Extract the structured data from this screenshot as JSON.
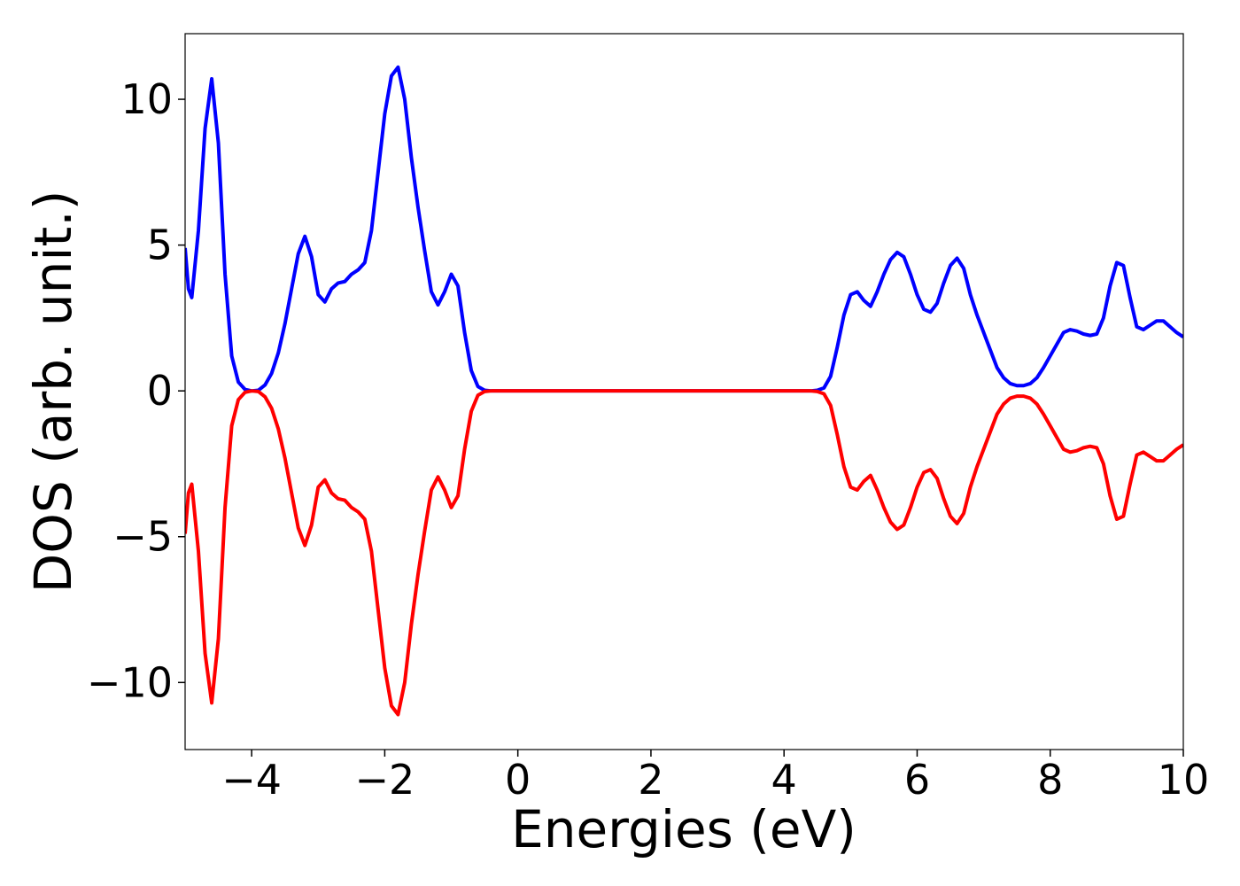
{
  "chart_data": {
    "type": "line",
    "xlabel": "Energies (eV)",
    "ylabel": "DOS (arb. unit.)",
    "x": [
      -5,
      -4.95,
      -4.9,
      -4.8,
      -4.7,
      -4.6,
      -4.5,
      -4.4,
      -4.3,
      -4.2,
      -4.1,
      -4.0,
      -3.9,
      -3.8,
      -3.7,
      -3.6,
      -3.5,
      -3.4,
      -3.3,
      -3.2,
      -3.1,
      -3.0,
      -2.9,
      -2.8,
      -2.7,
      -2.6,
      -2.5,
      -2.4,
      -2.3,
      -2.2,
      -2.1,
      -2.0,
      -1.9,
      -1.8,
      -1.7,
      -1.6,
      -1.5,
      -1.4,
      -1.3,
      -1.2,
      -1.1,
      -1.0,
      -0.9,
      -0.8,
      -0.7,
      -0.6,
      -0.5,
      -0.4,
      0,
      1,
      2,
      3,
      4,
      4.4,
      4.5,
      4.6,
      4.7,
      4.8,
      4.9,
      5.0,
      5.1,
      5.2,
      5.3,
      5.4,
      5.5,
      5.6,
      5.7,
      5.8,
      5.9,
      6.0,
      6.1,
      6.2,
      6.3,
      6.4,
      6.5,
      6.6,
      6.7,
      6.8,
      6.9,
      7.0,
      7.1,
      7.2,
      7.3,
      7.4,
      7.5,
      7.6,
      7.7,
      7.8,
      7.9,
      8.0,
      8.1,
      8.2,
      8.3,
      8.4,
      8.5,
      8.6,
      8.7,
      8.8,
      8.9,
      9.0,
      9.1,
      9.2,
      9.3,
      9.4,
      9.5,
      9.6,
      9.7,
      9.8,
      9.9,
      10.0
    ],
    "series": [
      {
        "color": "#0000ff",
        "values": [
          4.9,
          3.5,
          3.2,
          5.5,
          9.0,
          10.7,
          8.5,
          4.0,
          1.2,
          0.3,
          0.05,
          0,
          0.02,
          0.2,
          0.6,
          1.3,
          2.3,
          3.5,
          4.7,
          5.3,
          4.6,
          3.3,
          3.05,
          3.5,
          3.7,
          3.75,
          4.0,
          4.15,
          4.4,
          5.5,
          7.5,
          9.5,
          10.8,
          11.1,
          10.0,
          8.0,
          6.3,
          4.8,
          3.4,
          2.95,
          3.4,
          4.0,
          3.6,
          2.0,
          0.7,
          0.15,
          0.02,
          0,
          0,
          0,
          0,
          0,
          0,
          0,
          0.02,
          0.1,
          0.5,
          1.5,
          2.6,
          3.3,
          3.4,
          3.1,
          2.9,
          3.4,
          4.0,
          4.5,
          4.75,
          4.6,
          4.0,
          3.3,
          2.8,
          2.7,
          3.0,
          3.7,
          4.3,
          4.55,
          4.2,
          3.3,
          2.6,
          2.0,
          1.4,
          0.8,
          0.45,
          0.25,
          0.18,
          0.18,
          0.25,
          0.45,
          0.8,
          1.2,
          1.6,
          2.0,
          2.1,
          2.05,
          1.95,
          1.9,
          1.95,
          2.5,
          3.6,
          4.4,
          4.3,
          3.2,
          2.2,
          2.1,
          2.25,
          2.4,
          2.4,
          2.2,
          2.0,
          1.85
        ]
      },
      {
        "color": "#ff0000",
        "values": [
          -4.9,
          -3.5,
          -3.2,
          -5.5,
          -9.0,
          -10.7,
          -8.5,
          -4.0,
          -1.2,
          -0.3,
          -0.05,
          0,
          -0.02,
          -0.2,
          -0.6,
          -1.3,
          -2.3,
          -3.5,
          -4.7,
          -5.3,
          -4.6,
          -3.3,
          -3.05,
          -3.5,
          -3.7,
          -3.75,
          -4.0,
          -4.15,
          -4.4,
          -5.5,
          -7.5,
          -9.5,
          -10.8,
          -11.1,
          -10.0,
          -8.0,
          -6.3,
          -4.8,
          -3.4,
          -2.95,
          -3.4,
          -4.0,
          -3.6,
          -2.0,
          -0.7,
          -0.15,
          -0.02,
          0,
          0,
          0,
          0,
          0,
          0,
          0,
          -0.02,
          -0.1,
          -0.5,
          -1.5,
          -2.6,
          -3.3,
          -3.4,
          -3.1,
          -2.9,
          -3.4,
          -4.0,
          -4.5,
          -4.75,
          -4.6,
          -4.0,
          -3.3,
          -2.8,
          -2.7,
          -3.0,
          -3.7,
          -4.3,
          -4.55,
          -4.2,
          -3.3,
          -2.6,
          -2.0,
          -1.4,
          -0.8,
          -0.45,
          -0.25,
          -0.18,
          -0.18,
          -0.25,
          -0.45,
          -0.8,
          -1.2,
          -1.6,
          -2.0,
          -2.1,
          -2.05,
          -1.95,
          -1.9,
          -1.95,
          -2.5,
          -3.6,
          -4.4,
          -4.3,
          -3.2,
          -2.2,
          -2.1,
          -2.25,
          -2.4,
          -2.4,
          -2.2,
          -2.0,
          -1.85
        ]
      }
    ],
    "xlim": [
      -5,
      10
    ],
    "ylim": [
      -12.3,
      12.25
    ],
    "xticks": [
      {
        "value": -4,
        "label": "−4"
      },
      {
        "value": -2,
        "label": "−2"
      },
      0,
      2,
      4,
      6,
      8,
      10
    ],
    "yticks": [
      {
        "value": -10,
        "label": "−10"
      },
      {
        "value": -5,
        "label": "−5"
      },
      0,
      5,
      10
    ],
    "grid": false
  }
}
